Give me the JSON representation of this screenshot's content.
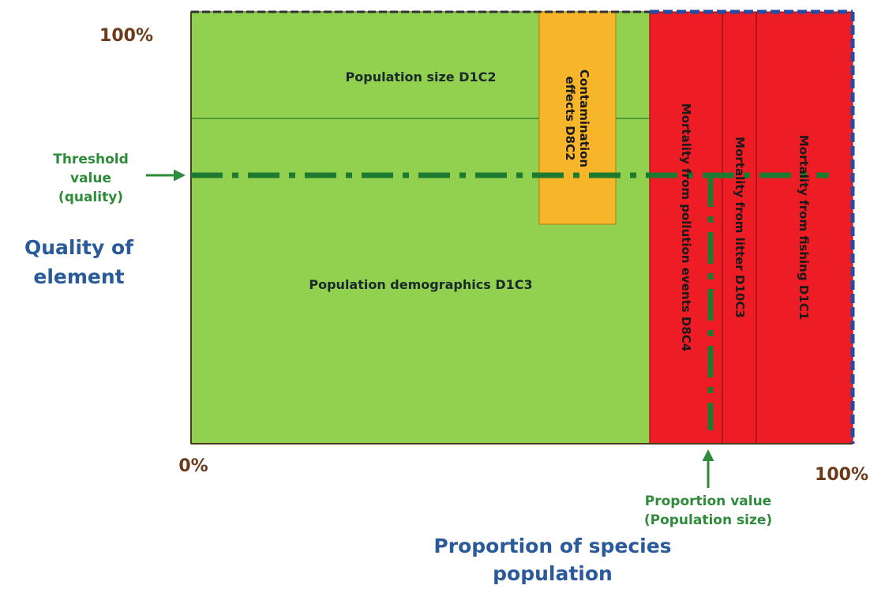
{
  "axes": {
    "y_top": "100%",
    "origin": "0%",
    "x_right": "100%",
    "y_title": [
      "Quality of",
      "element"
    ],
    "x_title": [
      "Proportion of species",
      "population"
    ]
  },
  "regions": {
    "population_size": "Population size D1C2",
    "population_demographics": "Population demographics D1C3",
    "contamination": [
      "Contamination",
      "effects D8C2"
    ],
    "pollution_events": "Mortality from pollution events D8C4",
    "litter": "Mortality from litter D10C3",
    "fishing": "Mortality from fishing D1C1"
  },
  "annotations": {
    "threshold": [
      "Threshold",
      "value",
      "(quality)"
    ],
    "proportion": [
      "Proportion value",
      "(Population size)"
    ]
  }
}
